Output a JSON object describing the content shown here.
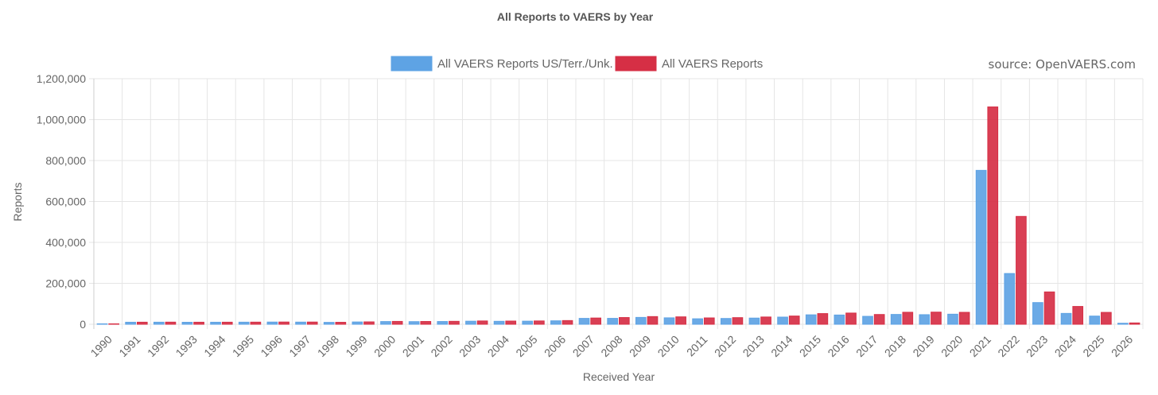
{
  "chart_data": {
    "type": "bar",
    "title": "All Reports to VAERS by Year",
    "xlabel": "Received Year",
    "ylabel": "Reports",
    "ylim": [
      0,
      1200000
    ],
    "yticks": [
      0,
      200000,
      400000,
      600000,
      800000,
      1000000,
      1200000
    ],
    "ytick_labels": [
      "0",
      "200,000",
      "400,000",
      "600,000",
      "800,000",
      "1,000,000",
      "1,200,000"
    ],
    "grid": true,
    "legend_position": "top-center",
    "source": "source: OpenVAERS.com",
    "categories": [
      "1990",
      "1991",
      "1992",
      "1993",
      "1994",
      "1995",
      "1996",
      "1997",
      "1998",
      "1999",
      "2000",
      "2001",
      "2002",
      "2003",
      "2004",
      "2005",
      "2006",
      "2007",
      "2008",
      "2009",
      "2010",
      "2011",
      "2012",
      "2013",
      "2014",
      "2015",
      "2016",
      "2017",
      "2018",
      "2019",
      "2020",
      "2021",
      "2022",
      "2023",
      "2024",
      "2025",
      "2026"
    ],
    "series": [
      {
        "name": "All VAERS Reports US/Terr./Unk.",
        "color": "#5ea3e4",
        "values": [
          2100,
          9900,
          10100,
          9700,
          9900,
          10200,
          10700,
          10500,
          9200,
          11200,
          13200,
          12800,
          13400,
          14900,
          14400,
          15100,
          16800,
          28700,
          28800,
          33500,
          31400,
          26800,
          28300,
          30200,
          35000,
          46100,
          45200,
          38700,
          48000,
          46800,
          49200,
          752000,
          248000,
          106000,
          53000,
          40000,
          5000
        ]
      },
      {
        "name": "All VAERS Reports",
        "color": "#d62f45",
        "values": [
          2100,
          10100,
          10400,
          10000,
          10100,
          10400,
          10900,
          10800,
          9600,
          11600,
          13900,
          13500,
          14300,
          16100,
          15600,
          16200,
          18100,
          30500,
          32800,
          37500,
          36200,
          31000,
          32300,
          35500,
          40200,
          52100,
          54700,
          47700,
          58600,
          59300,
          58300,
          1062000,
          527000,
          158000,
          87000,
          58000,
          6500
        ]
      }
    ]
  }
}
